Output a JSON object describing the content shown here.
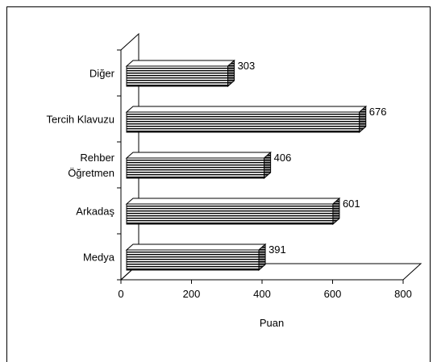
{
  "chart_data": {
    "type": "bar",
    "orientation": "horizontal",
    "three_d": true,
    "categories": [
      "Medya",
      "Arkadaş",
      "Rehber Öğretmen",
      "Tercih Klavuzu",
      "Diğer"
    ],
    "category_label_lines": [
      [
        "Medya"
      ],
      [
        "Arkadaş"
      ],
      [
        "Rehber",
        "Öğretmen"
      ],
      [
        "Tercih Klavuzu"
      ],
      [
        "Diğer"
      ]
    ],
    "values": [
      391,
      601,
      406,
      676,
      303
    ],
    "data_labels": [
      "391",
      "601",
      "406",
      "676",
      "303"
    ],
    "xlabel": "Puan",
    "xlim": [
      0,
      800
    ],
    "xticks": [
      "0",
      "200",
      "400",
      "600",
      "800"
    ],
    "grid": false,
    "legend": "none",
    "bar_fill": "striped black/grey horizontal lines",
    "colors": {
      "bar_stripe_dark": "#000000",
      "bar_stripe_light": "#bdbdbd",
      "axis": "#000000",
      "background": "#ffffff"
    }
  }
}
